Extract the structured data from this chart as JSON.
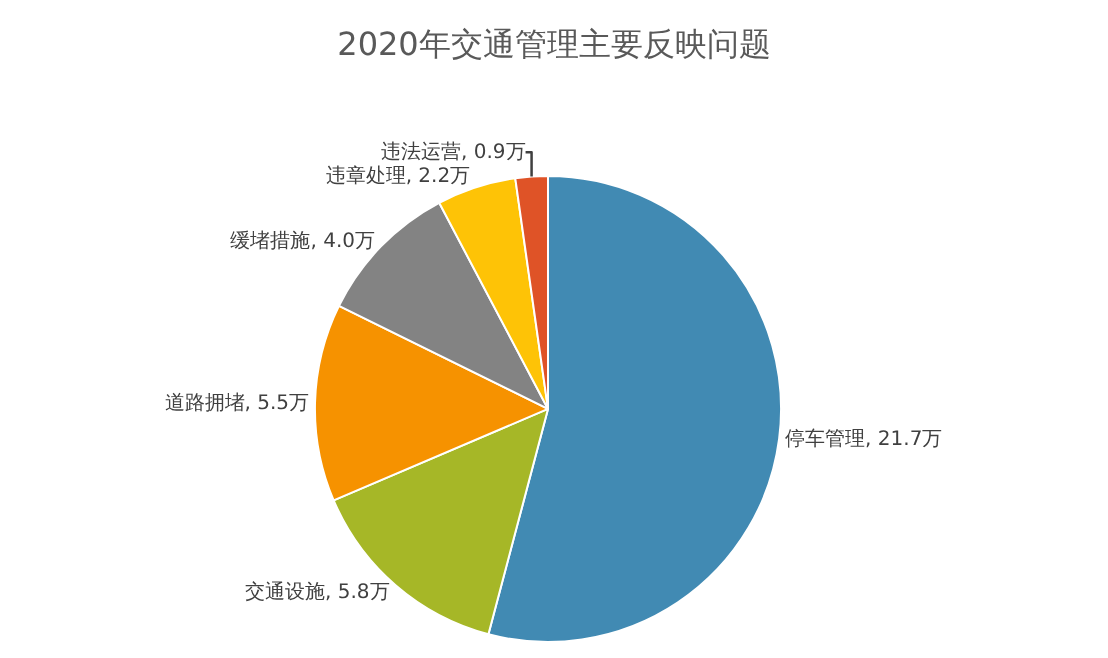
{
  "chart_data": {
    "type": "pie",
    "title": "2020年交通管理主要反映问题",
    "categories": [
      "停车管理",
      "交通设施",
      "道路拥堵",
      "缓堵措施",
      "违章处理",
      "违法运营"
    ],
    "values": [
      21.7,
      5.8,
      5.5,
      4.0,
      2.2,
      0.9
    ],
    "value_labels": [
      "21.7万",
      "5.8万",
      "5.5万",
      "4.0万",
      "2.2万",
      "0.9万"
    ],
    "colors": [
      "#418ab3",
      "#a6b727",
      "#f69200",
      "#838383",
      "#fec306",
      "#df5327"
    ],
    "legend": false
  }
}
